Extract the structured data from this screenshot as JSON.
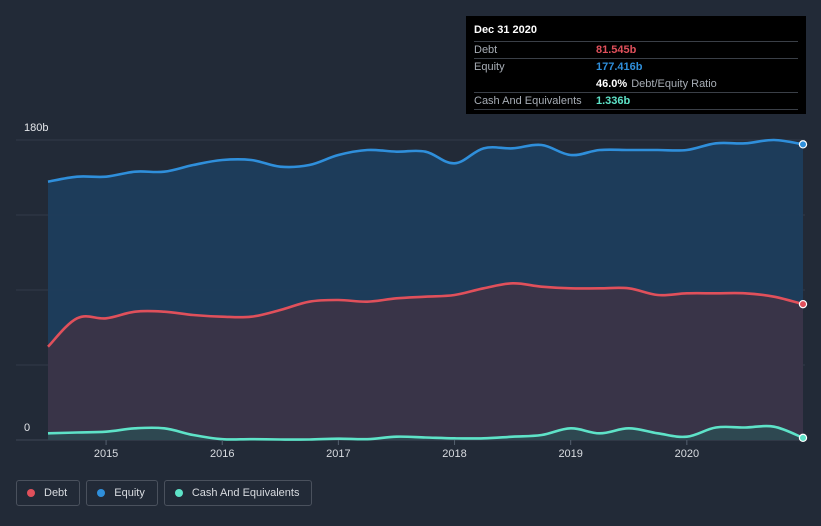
{
  "chart_data": {
    "type": "area",
    "title": "",
    "xlabel": "",
    "ylabel": "",
    "currency_symbol": "",
    "x_ticks": [
      "2015",
      "2016",
      "2017",
      "2018",
      "2019",
      "2020"
    ],
    "y_ticks": [
      "180b",
      "0"
    ],
    "ylim": [
      0,
      180
    ],
    "xlim": [
      2014.5,
      2021.0
    ],
    "series": [
      {
        "name": "Equity",
        "color": "#2f8fdb",
        "x": [
          2014.5,
          2014.75,
          2015.0,
          2015.25,
          2015.5,
          2015.75,
          2016.0,
          2016.25,
          2016.5,
          2016.75,
          2017.0,
          2017.25,
          2017.5,
          2017.75,
          2018.0,
          2018.25,
          2018.5,
          2018.75,
          2019.0,
          2019.25,
          2019.5,
          2019.75,
          2020.0,
          2020.25,
          2020.5,
          2020.75,
          2021.0
        ],
        "values": [
          155,
          158,
          158,
          161,
          161,
          165,
          168,
          168,
          164,
          165,
          171,
          174,
          173,
          173,
          166,
          175,
          175,
          177,
          171,
          174,
          174,
          174,
          174,
          178,
          178,
          180,
          177.4
        ]
      },
      {
        "name": "Debt",
        "color": "#e0505b",
        "x": [
          2014.5,
          2014.75,
          2015.0,
          2015.25,
          2015.5,
          2015.75,
          2016.0,
          2016.25,
          2016.5,
          2016.75,
          2017.0,
          2017.25,
          2017.5,
          2017.75,
          2018.0,
          2018.25,
          2018.5,
          2018.75,
          2019.0,
          2019.25,
          2019.5,
          2019.75,
          2020.0,
          2020.25,
          2020.5,
          2020.75,
          2021.0
        ],
        "values": [
          56,
          73,
          73,
          77,
          77,
          75,
          74,
          74,
          78,
          83,
          84,
          83,
          85,
          86,
          87,
          91,
          94,
          92,
          91,
          91,
          91,
          87,
          88,
          88,
          88,
          86,
          81.5
        ]
      },
      {
        "name": "Cash And Equivalents",
        "color": "#5ee3c8",
        "x": [
          2014.5,
          2014.75,
          2015.0,
          2015.25,
          2015.5,
          2015.75,
          2016.0,
          2016.25,
          2016.5,
          2016.75,
          2017.0,
          2017.25,
          2017.5,
          2017.75,
          2018.0,
          2018.25,
          2018.5,
          2018.75,
          2019.0,
          2019.25,
          2019.5,
          2019.75,
          2020.0,
          2020.25,
          2020.5,
          2020.75,
          2021.0
        ],
        "values": [
          4,
          4.5,
          5,
          7,
          7,
          3,
          0.5,
          0.5,
          0.3,
          0.3,
          0.8,
          0.5,
          2,
          1.5,
          1,
          1,
          2,
          3,
          7,
          4,
          7,
          4,
          2,
          7.5,
          7.5,
          8,
          1.3
        ]
      }
    ]
  },
  "tooltip": {
    "date": "Dec 31 2020",
    "debt_label": "Debt",
    "debt_value": "81.545b",
    "equity_label": "Equity",
    "equity_value": "177.416b",
    "ratio_value": "46.0%",
    "ratio_label": "Debt/Equity Ratio",
    "cash_label": "Cash And Equivalents",
    "cash_value": "1.336b"
  },
  "legend": {
    "debt": "Debt",
    "equity": "Equity",
    "cash": "Cash And Equivalents"
  },
  "colors": {
    "debt": "#e0505b",
    "equity": "#2f8fdb",
    "cash": "#5ee3c8"
  }
}
